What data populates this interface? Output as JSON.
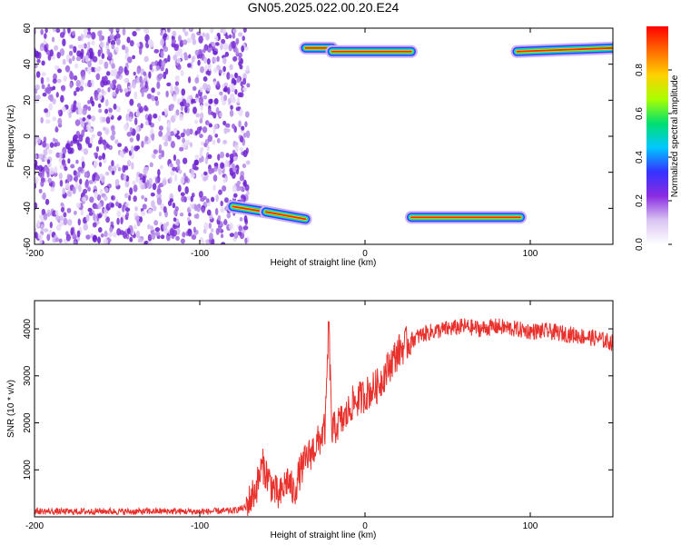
{
  "title": "GN05.2025.022.00.20.E24",
  "chart_data": [
    {
      "type": "heatmap",
      "xlabel": "Height of straight line (km)",
      "ylabel": "Frequency (Hz)",
      "xlim": [
        -200,
        150
      ],
      "ylim": [
        -60,
        60
      ],
      "xticks": [
        -200,
        -100,
        0,
        100
      ],
      "yticks": [
        -60,
        -40,
        -20,
        0,
        20,
        40,
        60
      ],
      "colorbar": {
        "label": "Normalized spectral amplitude",
        "range": [
          0,
          1
        ],
        "ticks": [
          "0.0",
          "0.2",
          "0.4",
          "0.6",
          "0.8"
        ],
        "colormap": [
          "#ffffff",
          "#d9c4f2",
          "#8a2be2",
          "#3333ff",
          "#00c8ff",
          "#00e070",
          "#aaff00",
          "#ffd000",
          "#ff6a00",
          "#ff0000"
        ]
      },
      "noise_region": {
        "x": [
          -200,
          -75
        ],
        "y": [
          -60,
          60
        ],
        "amplitude": [
          0.0,
          0.12
        ]
      },
      "bands": [
        {
          "x": [
            -80,
            -60
          ],
          "f": [
            -39,
            -42
          ],
          "amplitude": 0.95
        },
        {
          "x": [
            -60,
            -36
          ],
          "f": [
            -42,
            -46
          ],
          "amplitude": 0.9
        },
        {
          "x": [
            -36,
            -20
          ],
          "f": [
            49,
            49
          ],
          "amplitude": 0.9
        },
        {
          "x": [
            -20,
            28
          ],
          "f": [
            47,
            47
          ],
          "amplitude": 0.95
        },
        {
          "x": [
            28,
            94
          ],
          "f": [
            -45,
            -45
          ],
          "amplitude": 1.0
        },
        {
          "x": [
            92,
            150
          ],
          "f": [
            47,
            49
          ],
          "amplitude": 0.95
        }
      ]
    },
    {
      "type": "line",
      "xlabel": "Height of straight line (km)",
      "ylabel": "SNR (10 * v/v)",
      "xlim": [
        -200,
        150
      ],
      "ylim": [
        0,
        4600
      ],
      "xticks": [
        -200,
        -100,
        0,
        100
      ],
      "yticks": [
        1000,
        2000,
        3000,
        4000
      ],
      "color": "#e8312c",
      "series": [
        {
          "x": [
            -200,
            -180,
            -160,
            -140,
            -120,
            -100,
            -80,
            -72,
            -66,
            -62,
            -57,
            -52,
            -47,
            -43,
            -40,
            -36,
            -32,
            -28,
            -24,
            -22,
            -20,
            -16,
            -12,
            -8,
            -4,
            0,
            4,
            8,
            12,
            16,
            20,
            24,
            30,
            36,
            42,
            50,
            60,
            70,
            80,
            90,
            100,
            110,
            120,
            130,
            140,
            150
          ],
          "y": [
            120,
            110,
            120,
            110,
            120,
            110,
            130,
            200,
            600,
            1100,
            700,
            400,
            800,
            500,
            900,
            1200,
            1400,
            1600,
            1900,
            4100,
            1800,
            2000,
            2100,
            2400,
            2500,
            2600,
            2700,
            2800,
            3050,
            3300,
            3500,
            3650,
            3800,
            3900,
            3950,
            4000,
            4050,
            4000,
            4050,
            4000,
            3950,
            3950,
            3900,
            3850,
            3800,
            3700
          ]
        }
      ]
    }
  ]
}
